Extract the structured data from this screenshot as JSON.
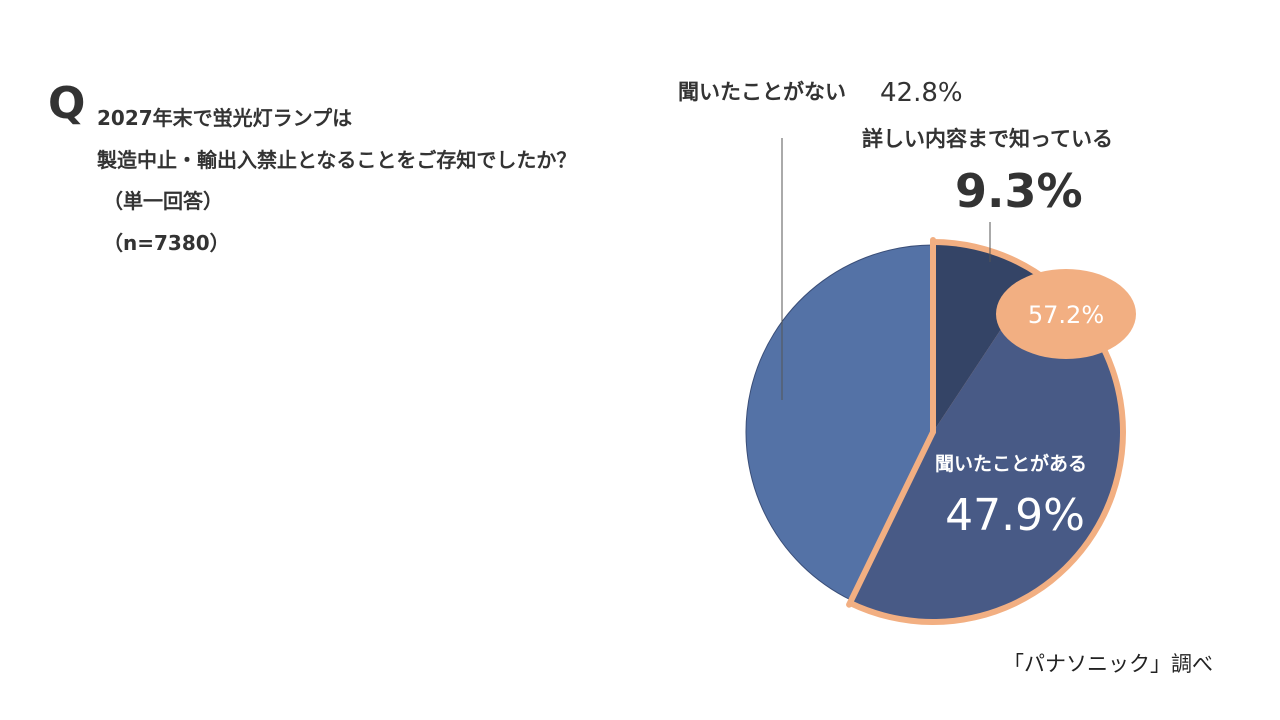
{
  "question": {
    "mark": "Q",
    "lines": [
      "2027年末で蛍光灯ランプは",
      "製造中止・輸出入禁止となることをご存知でしたか？",
      "（単一回答）",
      "（n=7380）"
    ]
  },
  "chart_data": {
    "type": "pie",
    "categories": [
      "詳しい内容まで知っている",
      "聞いたことがある",
      "聞いたことがない"
    ],
    "values": [
      9.3,
      47.9,
      42.8
    ],
    "value_labels": [
      "9.3%",
      "47.9%",
      "42.8%"
    ],
    "colors": [
      "#344466",
      "#485a86",
      "#5472a6"
    ],
    "highlight": {
      "label": "57.2%",
      "value": 57.2,
      "color": "#f2af82"
    }
  },
  "source": "「パナソニック」調べ"
}
